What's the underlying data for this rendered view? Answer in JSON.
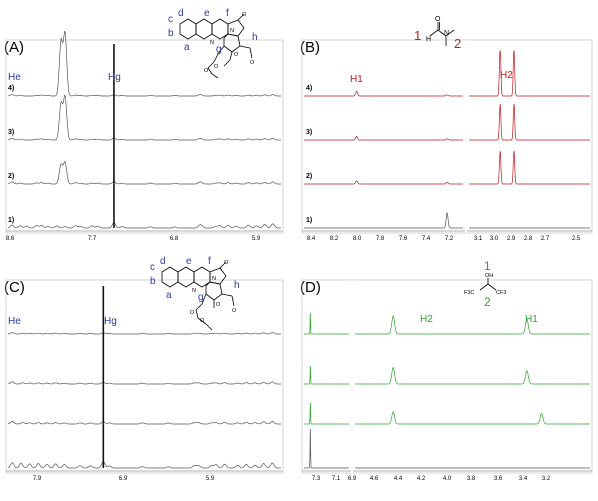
{
  "chart_data": [
    {
      "panel": "(A)",
      "type": "line",
      "x_ticks": [
        "8.6",
        "7.7",
        "6.8",
        "5.9"
      ],
      "x_tick_values": [
        8.6,
        7.7,
        6.8,
        5.9
      ],
      "xlim": [
        8.65,
        5.3
      ],
      "peak_labels": [
        {
          "text": "He",
          "x": 8.6
        },
        {
          "text": "Hg",
          "x": 7.35
        }
      ],
      "structure_letters": [
        "a",
        "b",
        "c",
        "d",
        "e",
        "f",
        "g",
        "h"
      ],
      "structure_atom_labels": [
        "N",
        "N",
        "O",
        "O",
        "O",
        "O",
        "O"
      ],
      "series": [
        {
          "name": "4)",
          "color": "#555555",
          "peaks": [
            [
              8.6,
              0.12
            ],
            [
              8.5,
              0.07
            ],
            [
              8.3,
              0.06
            ],
            [
              8.24,
              0.08
            ],
            [
              8.16,
              0.06
            ],
            [
              8.0,
              4.5
            ],
            [
              7.95,
              5.2
            ],
            [
              7.82,
              0.08
            ],
            [
              7.76,
              0.05
            ],
            [
              7.62,
              0.06
            ],
            [
              7.55,
              0.06
            ],
            [
              7.35,
              0.1
            ],
            [
              7.25,
              0.05
            ],
            [
              6.9,
              0.06
            ],
            [
              6.6,
              0.05
            ],
            [
              6.3,
              0.07
            ],
            [
              6.28,
              0.07
            ],
            [
              6.1,
              0.06
            ],
            [
              6.05,
              0.07
            ],
            [
              5.95,
              0.08
            ],
            [
              5.85,
              0.06
            ],
            [
              5.7,
              0.08
            ],
            [
              5.6,
              0.07
            ],
            [
              5.5,
              0.1
            ],
            [
              5.4,
              0.12
            ]
          ]
        },
        {
          "name": "3)",
          "color": "#555555",
          "peaks": [
            [
              8.6,
              0.15
            ],
            [
              8.5,
              0.07
            ],
            [
              8.3,
              0.08
            ],
            [
              8.24,
              0.1
            ],
            [
              8.16,
              0.07
            ],
            [
              8.0,
              3.0
            ],
            [
              7.95,
              3.6
            ],
            [
              7.82,
              0.1
            ],
            [
              7.76,
              0.06
            ],
            [
              7.62,
              0.07
            ],
            [
              7.55,
              0.07
            ],
            [
              7.35,
              0.15
            ],
            [
              7.25,
              0.06
            ],
            [
              6.9,
              0.07
            ],
            [
              6.6,
              0.06
            ],
            [
              6.3,
              0.08
            ],
            [
              6.28,
              0.08
            ],
            [
              6.1,
              0.07
            ],
            [
              6.05,
              0.09
            ],
            [
              5.95,
              0.1
            ],
            [
              5.85,
              0.07
            ],
            [
              5.7,
              0.1
            ],
            [
              5.6,
              0.08
            ],
            [
              5.5,
              0.12
            ],
            [
              5.4,
              0.14
            ]
          ]
        },
        {
          "name": "2)",
          "color": "#555555",
          "peaks": [
            [
              8.6,
              0.18
            ],
            [
              8.5,
              0.08
            ],
            [
              8.3,
              0.1
            ],
            [
              8.24,
              0.12
            ],
            [
              8.16,
              0.08
            ],
            [
              8.0,
              1.6
            ],
            [
              7.95,
              1.8
            ],
            [
              7.82,
              0.12
            ],
            [
              7.76,
              0.07
            ],
            [
              7.62,
              0.08
            ],
            [
              7.55,
              0.08
            ],
            [
              7.35,
              0.2
            ],
            [
              7.25,
              0.07
            ],
            [
              6.9,
              0.08
            ],
            [
              6.6,
              0.07
            ],
            [
              6.3,
              0.1
            ],
            [
              6.28,
              0.1
            ],
            [
              6.1,
              0.08
            ],
            [
              6.05,
              0.1
            ],
            [
              5.95,
              0.12
            ],
            [
              5.85,
              0.08
            ],
            [
              5.7,
              0.12
            ],
            [
              5.6,
              0.1
            ],
            [
              5.5,
              0.15
            ],
            [
              5.4,
              0.18
            ]
          ]
        },
        {
          "name": "1)",
          "color": "#555555",
          "peaks": [
            [
              8.6,
              0.25
            ],
            [
              8.5,
              0.2
            ],
            [
              8.42,
              0.16
            ],
            [
              8.3,
              0.2
            ],
            [
              8.24,
              0.22
            ],
            [
              8.16,
              0.15
            ],
            [
              8.05,
              0.18
            ],
            [
              7.95,
              0.12
            ],
            [
              7.82,
              0.2
            ],
            [
              7.76,
              0.15
            ],
            [
              7.62,
              0.18
            ],
            [
              7.55,
              0.16
            ],
            [
              7.35,
              0.45
            ],
            [
              7.25,
              0.12
            ],
            [
              6.9,
              0.1
            ],
            [
              6.6,
              0.09
            ],
            [
              6.3,
              0.16
            ],
            [
              6.28,
              0.16
            ],
            [
              6.1,
              0.14
            ],
            [
              6.05,
              0.2
            ],
            [
              5.95,
              0.24
            ],
            [
              5.85,
              0.16
            ],
            [
              5.7,
              0.24
            ],
            [
              5.6,
              0.18
            ],
            [
              5.5,
              0.3
            ],
            [
              5.4,
              0.35
            ]
          ]
        }
      ]
    },
    {
      "panel": "(B)",
      "type": "line",
      "x_ticks": [
        "8.4",
        "8.2",
        "8.0",
        "7.8",
        "7.6",
        "7.4",
        "7.2",
        "3.1",
        "3.0",
        "2.9",
        "2.8",
        "2.7",
        "2.5"
      ],
      "peak_labels": [
        {
          "text": "H1"
        },
        {
          "text": "H2"
        }
      ],
      "structure_numbers": [
        "1",
        "2"
      ],
      "structure_atom_labels": [
        "H",
        "O",
        "N"
      ],
      "series": [
        {
          "name": "4)",
          "color": "#c0181d",
          "peaks": [
            [
              8.02,
              0.08
            ],
            [
              7.28,
              0.02
            ],
            [
              2.97,
              0.8
            ],
            [
              2.89,
              0.8
            ]
          ]
        },
        {
          "name": "3)",
          "color": "#c0181d",
          "peaks": [
            [
              8.02,
              0.06
            ],
            [
              7.28,
              0.02
            ],
            [
              2.97,
              0.6
            ],
            [
              2.89,
              0.6
            ]
          ]
        },
        {
          "name": "2)",
          "color": "#c0181d",
          "peaks": [
            [
              8.02,
              0.05
            ],
            [
              7.28,
              0.03
            ],
            [
              2.97,
              0.55
            ],
            [
              2.89,
              0.55
            ]
          ]
        },
        {
          "name": "1)",
          "color": "#555555",
          "peaks": [
            [
              7.28,
              0.25
            ]
          ]
        }
      ]
    },
    {
      "panel": "(C)",
      "type": "line",
      "x_ticks": [
        "7.9",
        "6.9",
        "5.9"
      ],
      "x_tick_values": [
        7.9,
        6.9,
        5.9
      ],
      "xlim": [
        8.45,
        5.3
      ],
      "peak_labels": [
        {
          "text": "He",
          "x": 8.4
        },
        {
          "text": "Hg",
          "x": 7.35
        }
      ],
      "structure_letters": [
        "a",
        "b",
        "c",
        "d",
        "e",
        "f",
        "g",
        "h"
      ],
      "structure_atom_labels": [
        "N",
        "N",
        "O",
        "O",
        "O",
        "O",
        "O"
      ],
      "series": [
        {
          "name": "",
          "color": "#555555",
          "peaks": [
            [
              8.4,
              0.12
            ],
            [
              8.28,
              0.07
            ],
            [
              8.2,
              0.06
            ],
            [
              8.1,
              0.07
            ],
            [
              8.0,
              0.06
            ],
            [
              7.9,
              0.08
            ],
            [
              7.8,
              0.05
            ],
            [
              7.62,
              0.06
            ],
            [
              7.5,
              0.05
            ],
            [
              7.35,
              0.1
            ],
            [
              7.28,
              0.05
            ],
            [
              6.9,
              0.06
            ],
            [
              6.6,
              0.05
            ],
            [
              6.3,
              0.07
            ],
            [
              6.25,
              0.07
            ],
            [
              6.1,
              0.06
            ],
            [
              6.05,
              0.07
            ],
            [
              5.95,
              0.08
            ],
            [
              5.8,
              0.06
            ],
            [
              5.7,
              0.08
            ],
            [
              5.6,
              0.07
            ],
            [
              5.5,
              0.1
            ],
            [
              5.4,
              0.12
            ]
          ]
        },
        {
          "name": "",
          "color": "#555555",
          "peaks": [
            [
              8.4,
              0.18
            ],
            [
              8.28,
              0.1
            ],
            [
              8.2,
              0.09
            ],
            [
              8.1,
              0.1
            ],
            [
              8.0,
              0.08
            ],
            [
              7.9,
              0.1
            ],
            [
              7.8,
              0.07
            ],
            [
              7.62,
              0.08
            ],
            [
              7.5,
              0.07
            ],
            [
              7.35,
              0.15
            ],
            [
              7.28,
              0.07
            ],
            [
              6.9,
              0.08
            ],
            [
              6.6,
              0.07
            ],
            [
              6.3,
              0.1
            ],
            [
              6.25,
              0.1
            ],
            [
              6.1,
              0.08
            ],
            [
              6.05,
              0.1
            ],
            [
              5.95,
              0.12
            ],
            [
              5.8,
              0.08
            ],
            [
              5.7,
              0.12
            ],
            [
              5.6,
              0.1
            ],
            [
              5.5,
              0.15
            ],
            [
              5.4,
              0.18
            ]
          ]
        },
        {
          "name": "",
          "color": "#555555",
          "peaks": [
            [
              8.4,
              0.22
            ],
            [
              8.28,
              0.12
            ],
            [
              8.2,
              0.11
            ],
            [
              8.1,
              0.12
            ],
            [
              8.0,
              0.1
            ],
            [
              7.9,
              0.12
            ],
            [
              7.8,
              0.09
            ],
            [
              7.62,
              0.1
            ],
            [
              7.5,
              0.09
            ],
            [
              7.35,
              0.2
            ],
            [
              7.28,
              0.09
            ],
            [
              6.9,
              0.1
            ],
            [
              6.6,
              0.09
            ],
            [
              6.3,
              0.12
            ],
            [
              6.25,
              0.12
            ],
            [
              6.1,
              0.1
            ],
            [
              6.05,
              0.12
            ],
            [
              5.95,
              0.15
            ],
            [
              5.8,
              0.1
            ],
            [
              5.7,
              0.15
            ],
            [
              5.6,
              0.12
            ],
            [
              5.5,
              0.2
            ],
            [
              5.4,
              0.22
            ]
          ]
        },
        {
          "name": "",
          "color": "#555555",
          "peaks": [
            [
              8.4,
              0.45
            ],
            [
              8.3,
              0.4
            ],
            [
              8.2,
              0.35
            ],
            [
              8.1,
              0.38
            ],
            [
              8.0,
              0.32
            ],
            [
              7.9,
              0.35
            ],
            [
              7.8,
              0.3
            ],
            [
              7.62,
              0.2
            ],
            [
              7.5,
              0.18
            ],
            [
              7.35,
              0.55
            ],
            [
              7.28,
              0.18
            ],
            [
              6.9,
              0.12
            ],
            [
              6.6,
              0.1
            ],
            [
              6.3,
              0.22
            ],
            [
              6.25,
              0.22
            ],
            [
              6.1,
              0.2
            ],
            [
              6.05,
              0.28
            ],
            [
              5.95,
              0.32
            ],
            [
              5.8,
              0.22
            ],
            [
              5.7,
              0.3
            ],
            [
              5.6,
              0.24
            ],
            [
              5.5,
              0.38
            ],
            [
              5.4,
              0.42
            ]
          ]
        }
      ]
    },
    {
      "panel": "(D)",
      "type": "line",
      "x_ticks": [
        "7.3",
        "7.1",
        "6.9",
        "4.6",
        "4.4",
        "4.2",
        "4.0",
        "3.8",
        "3.6",
        "3.4",
        "3.2"
      ],
      "peak_labels": [
        {
          "text": "H2"
        },
        {
          "text": "H1"
        }
      ],
      "structure_numbers": [
        "1",
        "2"
      ],
      "structure_atom_labels": [
        "OH",
        "F3C",
        "CF3"
      ],
      "series": [
        {
          "name": "",
          "color": "#2ea52e",
          "peaks": [
            [
              7.28,
              0.7
            ],
            [
              4.44,
              0.6
            ],
            [
              3.53,
              0.5
            ]
          ]
        },
        {
          "name": "",
          "color": "#2ea52e",
          "peaks": [
            [
              7.28,
              0.6
            ],
            [
              4.44,
              0.55
            ],
            [
              3.53,
              0.45
            ]
          ]
        },
        {
          "name": "",
          "color": "#2ea52e",
          "peaks": [
            [
              7.28,
              0.7
            ],
            [
              4.44,
              0.4
            ],
            [
              3.43,
              0.35
            ]
          ]
        },
        {
          "name": "",
          "color": "#555555",
          "peaks": [
            [
              7.28,
              1.3
            ]
          ]
        }
      ]
    }
  ]
}
